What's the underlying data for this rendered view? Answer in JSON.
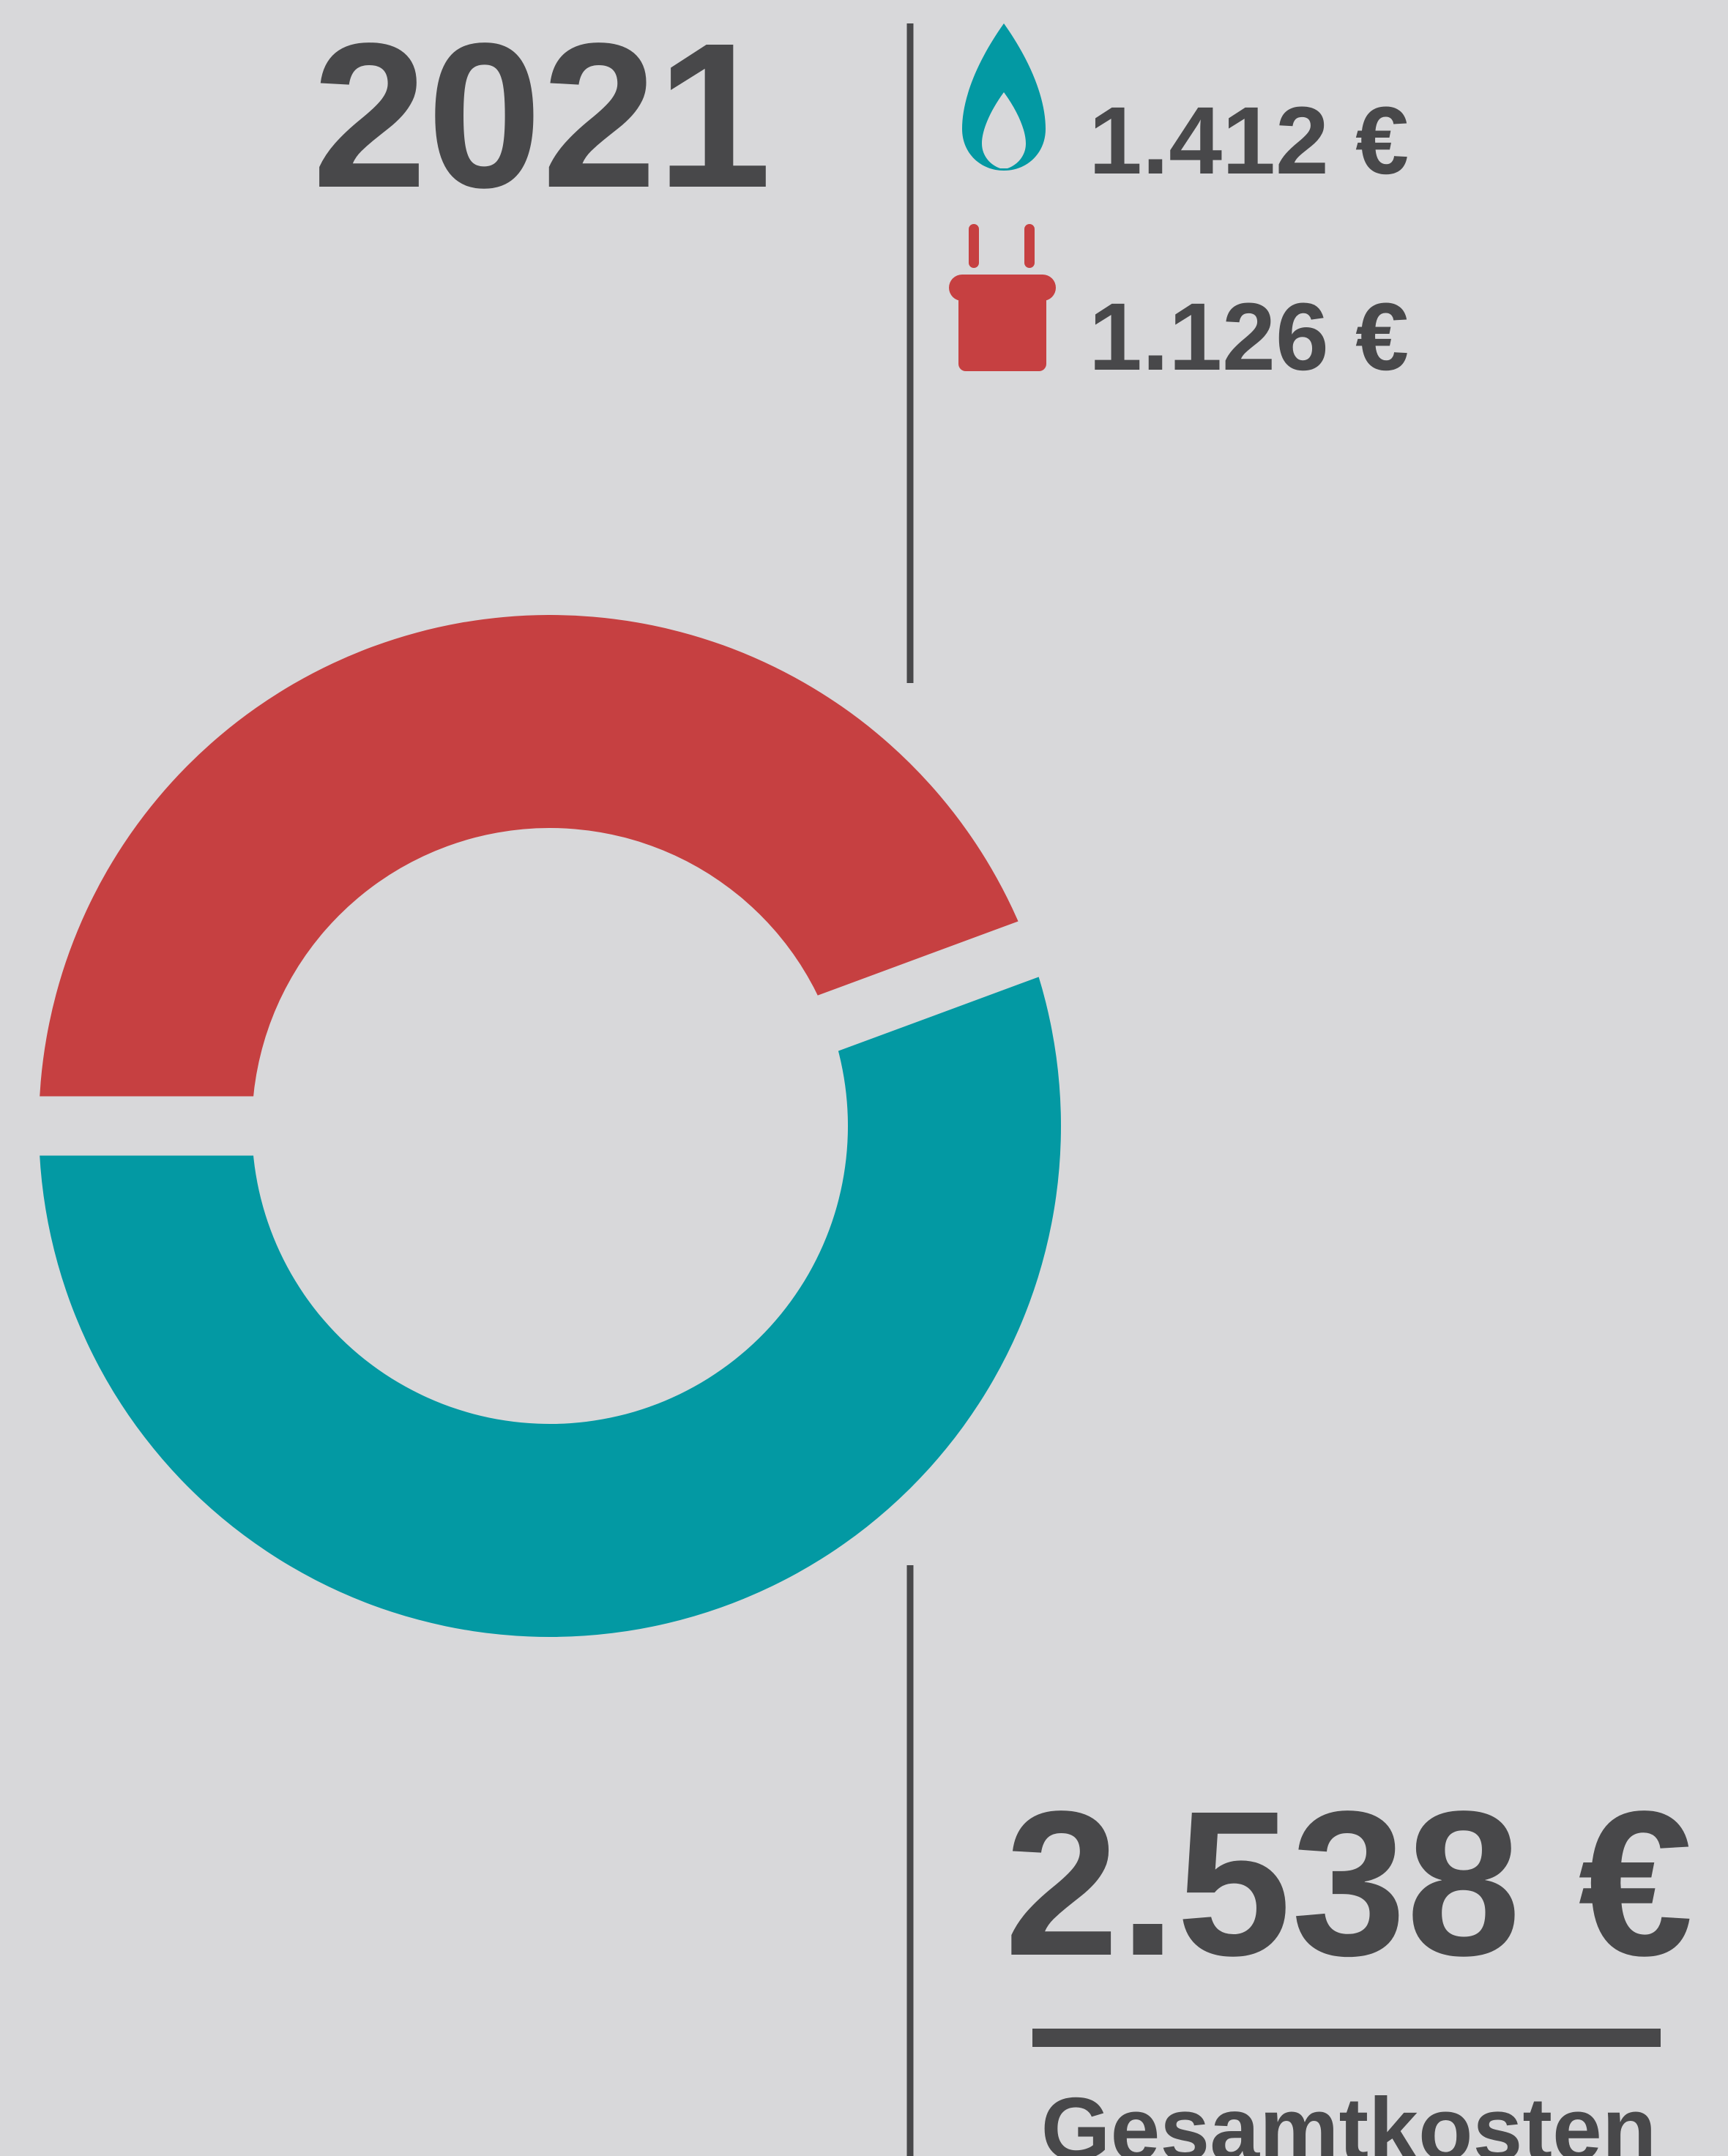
{
  "chart_data": {
    "type": "donut",
    "title": "2021",
    "values": [
      1412,
      1126
    ],
    "value_labels": [
      "1.412 €",
      "1.126 €"
    ],
    "colors": [
      "#0399a3",
      "#c64041"
    ],
    "total_label": "2.538 €",
    "total_caption": "Gesamtkosten"
  }
}
